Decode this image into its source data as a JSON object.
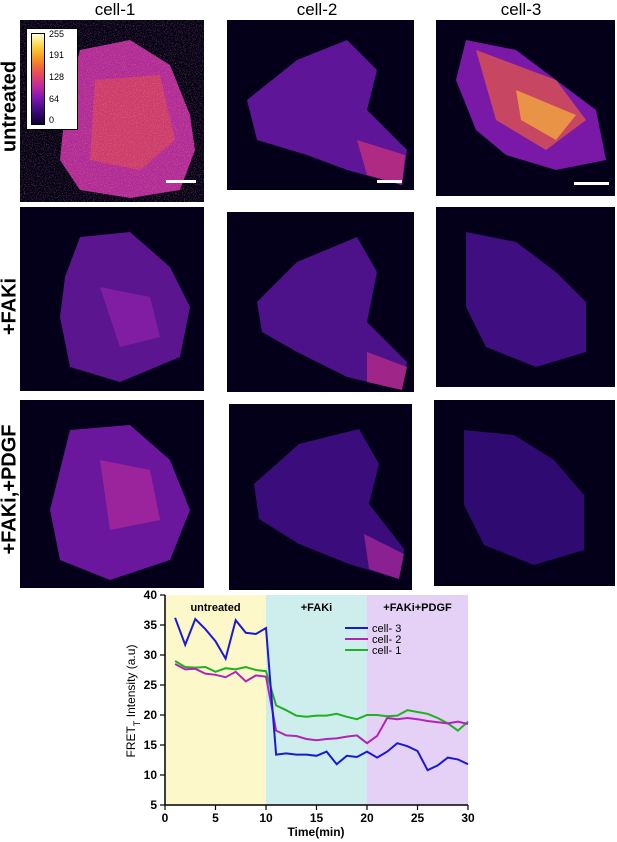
{
  "column_headers": [
    "cell-1",
    "cell-2",
    "cell-3"
  ],
  "row_labels": [
    "untreated",
    "+FAKi",
    "+FAKi,+PDGF"
  ],
  "colorbar": {
    "ticks": [
      "255",
      "191",
      "128",
      "64",
      "0"
    ]
  },
  "palette": {
    "background": "#05001a",
    "colormap": [
      "#0b0033",
      "#3d0a7a",
      "#7e16b0",
      "#c42a9c",
      "#ea4e52",
      "#f58f22",
      "#fbd13a",
      "#ffffd8"
    ]
  },
  "chart_data": {
    "type": "line",
    "xlabel": "Time(min)",
    "ylabel": "FRET",
    "ylabel_subscript": "T",
    "ylabel_suffix": " Intensity (a.u)",
    "xlim": [
      0,
      30
    ],
    "ylim": [
      5,
      40
    ],
    "xticks": [
      0,
      5,
      10,
      15,
      20,
      25,
      30
    ],
    "yticks": [
      5,
      10,
      15,
      20,
      25,
      30,
      35,
      40
    ],
    "phases": [
      {
        "label": "untreated",
        "x_start": 0,
        "x_end": 10,
        "color": "#fdf8c9"
      },
      {
        "label": "+FAKi",
        "x_start": 10,
        "x_end": 20,
        "color": "#cdeeed"
      },
      {
        "label": "+FAKi+PDGF",
        "x_start": 20,
        "x_end": 30,
        "color": "#e4d1f5"
      }
    ],
    "x": [
      1,
      2,
      3,
      4,
      5,
      6,
      7,
      8,
      9,
      10,
      11,
      12,
      13,
      14,
      15,
      16,
      17,
      18,
      19,
      20,
      21,
      22,
      23,
      24,
      25,
      26,
      27,
      28,
      29,
      30
    ],
    "series": [
      {
        "name": "cell- 3",
        "color": "#1a1ad6",
        "values": [
          36.2,
          31.7,
          36.0,
          34.3,
          32.3,
          29.4,
          35.8,
          33.7,
          33.5,
          34.5,
          13.4,
          13.6,
          13.4,
          13.4,
          13.2,
          13.9,
          11.8,
          13.2,
          13.0,
          13.9,
          12.9,
          13.9,
          15.3,
          14.8,
          14.0,
          10.8,
          11.6,
          12.9,
          12.6,
          11.8
        ]
      },
      {
        "name": "cell- 2",
        "color": "#b024b8",
        "values": [
          28.5,
          27.6,
          27.7,
          26.9,
          26.7,
          26.3,
          27.2,
          25.6,
          26.6,
          26.4,
          17.4,
          16.6,
          16.5,
          16.0,
          15.8,
          16.0,
          16.1,
          16.4,
          16.6,
          15.3,
          16.5,
          19.5,
          19.3,
          19.5,
          19.3,
          19.0,
          18.8,
          18.6,
          18.9,
          18.5
        ]
      },
      {
        "name": "cell- 1",
        "color": "#22b022",
        "values": [
          29.0,
          28.0,
          27.9,
          28.0,
          27.2,
          27.8,
          27.6,
          28.0,
          27.5,
          27.3,
          21.6,
          20.8,
          19.9,
          19.7,
          19.9,
          19.9,
          20.2,
          19.7,
          19.3,
          20.0,
          20.0,
          19.8,
          19.9,
          20.8,
          20.5,
          20.2,
          19.5,
          18.6,
          17.4,
          18.9
        ]
      }
    ]
  }
}
